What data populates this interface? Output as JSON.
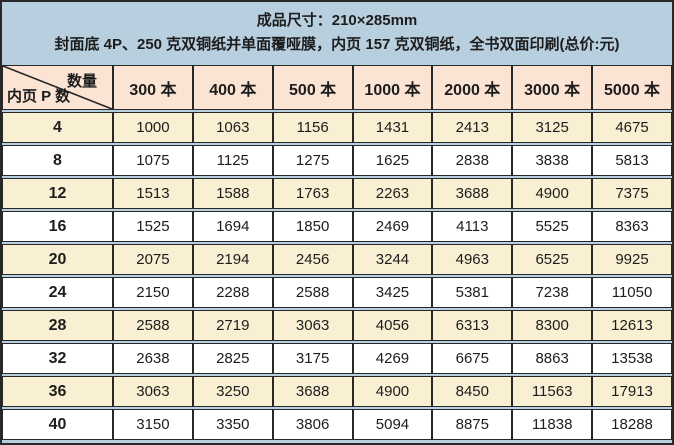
{
  "header": {
    "line1": "成品尺寸：210×285mm",
    "line2": "封面底 4P、250 克双铜纸并单面覆哑膜，内页 157 克双铜纸，全书双面印刷(总价:元)"
  },
  "table": {
    "corner": {
      "quantity_label": "数量",
      "pages_label": "内页 P 数"
    },
    "columns": [
      "300 本",
      "400 本",
      "500 本",
      "1000 本",
      "2000 本",
      "3000 本",
      "5000 本"
    ]
  },
  "chart_data": {
    "type": "table",
    "title": "成品尺寸：210×285mm",
    "subtitle": "封面底 4P、250 克双铜纸并单面覆哑膜，内页 157 克双铜纸，全书双面印刷(总价:元)",
    "column_axis_label": "数量",
    "row_axis_label": "内页 P 数",
    "column_unit": "本",
    "columns": [
      300,
      400,
      500,
      1000,
      2000,
      3000,
      5000
    ],
    "row_categories": [
      4,
      8,
      12,
      16,
      20,
      24,
      28,
      32,
      36,
      40
    ],
    "values": [
      [
        1000,
        1063,
        1156,
        1431,
        2413,
        3125,
        4675
      ],
      [
        1075,
        1125,
        1275,
        1625,
        2838,
        3838,
        5813
      ],
      [
        1513,
        1588,
        1763,
        2263,
        3688,
        4900,
        7375
      ],
      [
        1525,
        1694,
        1850,
        2469,
        4113,
        5525,
        8363
      ],
      [
        2075,
        2194,
        2456,
        3244,
        4963,
        6525,
        9925
      ],
      [
        2150,
        2288,
        2588,
        3425,
        5381,
        7238,
        11050
      ],
      [
        2588,
        2719,
        3063,
        4056,
        6313,
        8300,
        12613
      ],
      [
        2638,
        2825,
        3175,
        4269,
        6675,
        8863,
        13538
      ],
      [
        3063,
        3250,
        3688,
        4900,
        8450,
        11563,
        17913
      ],
      [
        3150,
        3350,
        3806,
        5094,
        8875,
        11838,
        18288
      ]
    ]
  },
  "colors": {
    "header_bg": "#b8cfdf",
    "column_header_bg": "#fce4d5",
    "row_alt_bg": "#f9efd2",
    "row_bg": "#ffffff",
    "border": "#282828",
    "text": "#1d1d1d"
  }
}
